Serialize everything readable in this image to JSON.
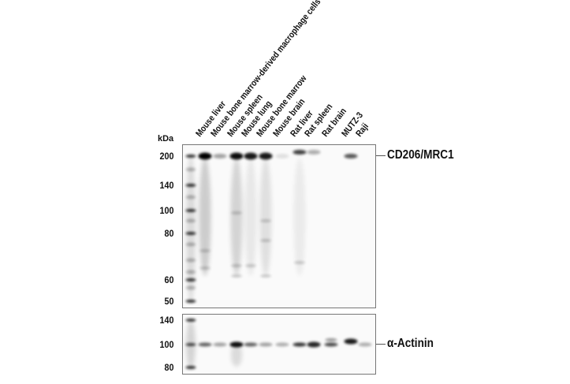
{
  "unit_label": "kDa",
  "lanes": [
    "Mouse liver",
    "Mouse bone marrow-derived macrophage cells",
    "Mouse spleen",
    "Mouse lung",
    "Mouse bone marrow",
    "Mouse brain",
    "Rat liver",
    "Rat spleen",
    "Rat brain",
    "MUTZ-3",
    "Raji"
  ],
  "upper_panel": {
    "target": "CD206/MRC1",
    "markers": [
      "200",
      "140",
      "100",
      "80",
      "60",
      "50"
    ],
    "band_intensity": [
      1.0,
      0.35,
      0.95,
      0.9,
      0.9,
      0.1,
      0.75,
      0.3,
      0.0,
      0.65,
      0.0
    ]
  },
  "lower_panel": {
    "target": "α-Actinin",
    "markers": [
      "140",
      "100",
      "80"
    ],
    "band_intensity": [
      0.6,
      0.35,
      0.95,
      0.6,
      0.35,
      0.3,
      0.8,
      0.85,
      0.7,
      0.9,
      0.3
    ]
  }
}
